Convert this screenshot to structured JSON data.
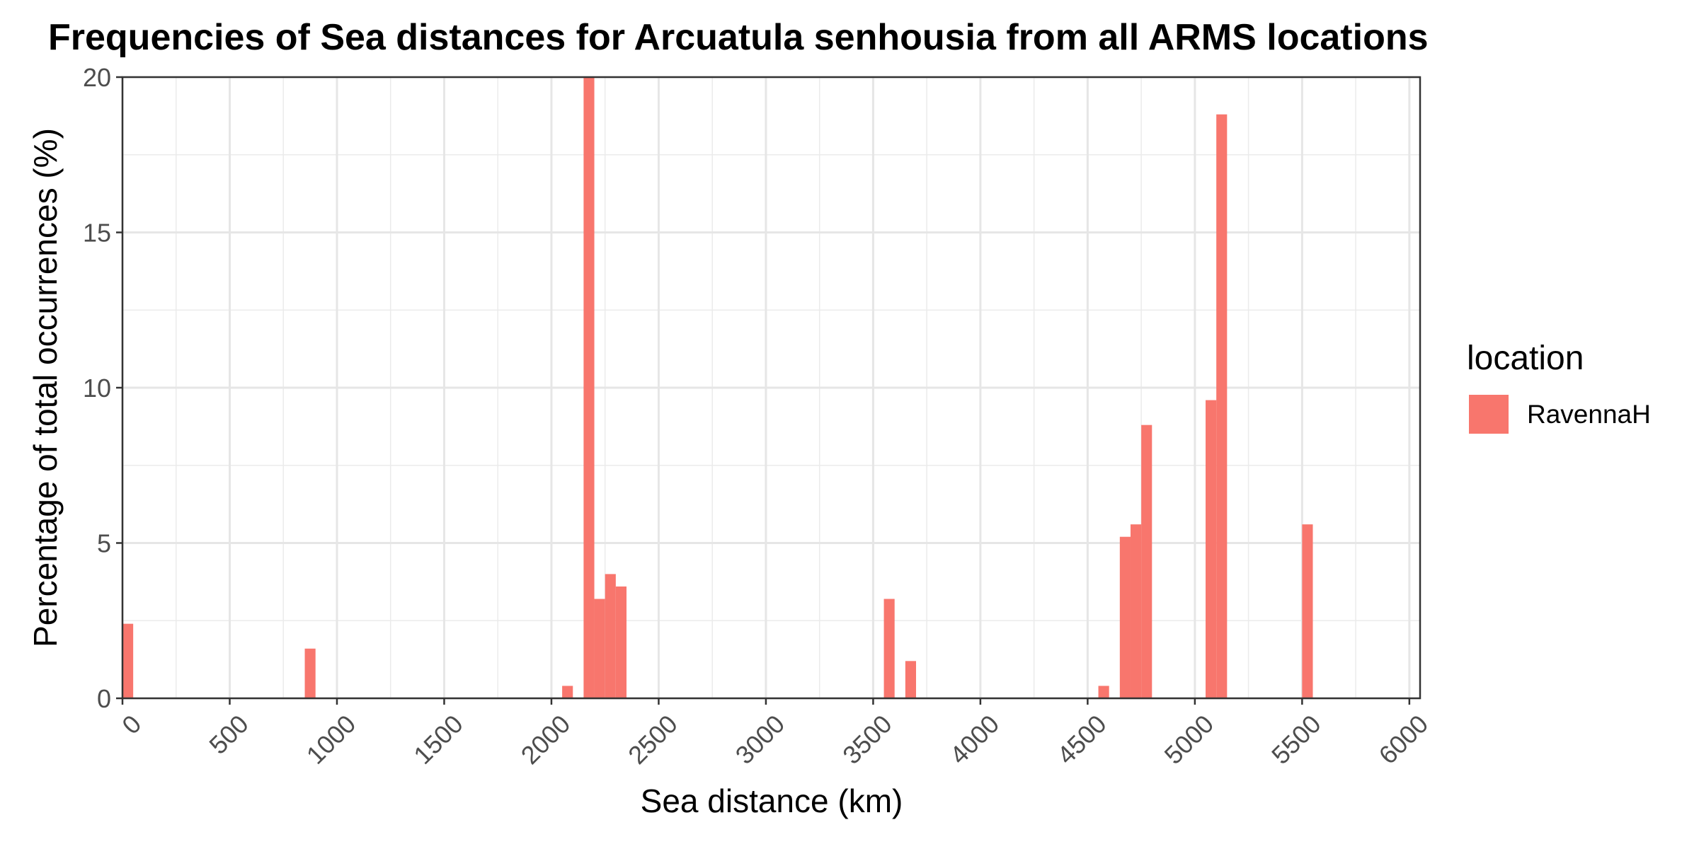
{
  "chart_data": {
    "type": "bar",
    "title": "Frequencies of Sea distances for Arcuatula senhousia from all ARMS locations",
    "xlabel": "Sea distance (km)",
    "ylabel": "Percentage of total occurrences (%)",
    "xlim": [
      0,
      6050
    ],
    "ylim": [
      0,
      20
    ],
    "x_ticks": [
      "0",
      "500",
      "1000",
      "1500",
      "2000",
      "2500",
      "3000",
      "3500",
      "4000",
      "4500",
      "5000",
      "5500",
      "6000"
    ],
    "y_ticks": [
      "0",
      "5",
      "10",
      "15",
      "20"
    ],
    "bin_width": 50,
    "grid": true,
    "legend": {
      "title": "location",
      "position": "right"
    },
    "series": [
      {
        "name": "RavennaH",
        "color": "#F8766D",
        "bins": [
          {
            "x": 0,
            "value": 2.4
          },
          {
            "x": 850,
            "value": 1.6
          },
          {
            "x": 2050,
            "value": 0.4
          },
          {
            "x": 2150,
            "value": 20.0
          },
          {
            "x": 2200,
            "value": 3.2
          },
          {
            "x": 2250,
            "value": 4.0
          },
          {
            "x": 2300,
            "value": 3.6
          },
          {
            "x": 3550,
            "value": 3.2
          },
          {
            "x": 3650,
            "value": 1.2
          },
          {
            "x": 4550,
            "value": 0.4
          },
          {
            "x": 4650,
            "value": 5.2
          },
          {
            "x": 4700,
            "value": 5.6
          },
          {
            "x": 4750,
            "value": 8.8
          },
          {
            "x": 5050,
            "value": 9.6
          },
          {
            "x": 5100,
            "value": 18.8
          },
          {
            "x": 5500,
            "value": 5.6
          }
        ]
      }
    ]
  }
}
